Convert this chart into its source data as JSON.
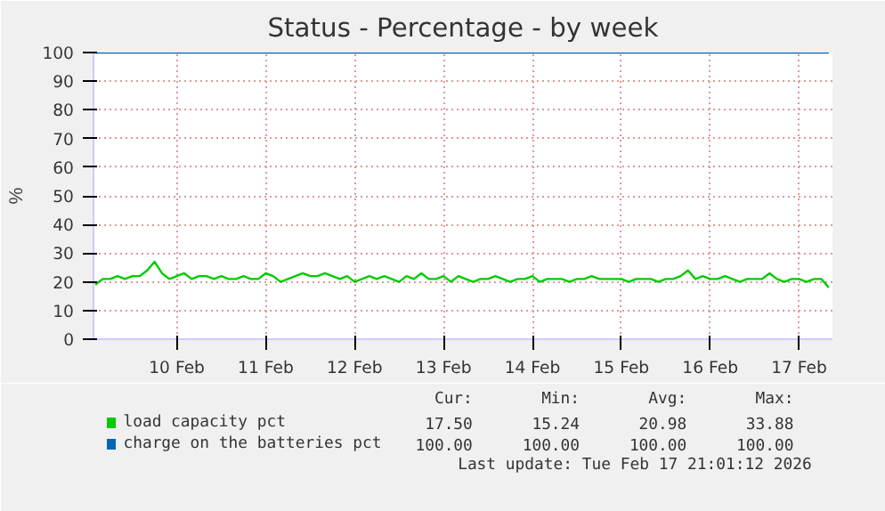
{
  "chart_data": {
    "type": "line",
    "title": "Status - Percentage - by week",
    "ylabel": "%",
    "x": [
      "2026-02-09T14:00",
      "2026-02-09T16:00",
      "2026-02-09T18:00",
      "2026-02-09T20:00",
      "2026-02-09T22:00",
      "2026-02-10T00:00",
      "2026-02-10T02:00",
      "2026-02-10T04:00",
      "2026-02-10T06:00",
      "2026-02-10T08:00",
      "2026-02-10T10:00",
      "2026-02-10T12:00",
      "2026-02-10T14:00",
      "2026-02-10T16:00",
      "2026-02-10T18:00",
      "2026-02-10T20:00",
      "2026-02-10T22:00",
      "2026-02-11T00:00",
      "2026-02-11T02:00",
      "2026-02-11T04:00",
      "2026-02-11T06:00",
      "2026-02-11T08:00",
      "2026-02-11T10:00",
      "2026-02-11T12:00",
      "2026-02-11T14:00",
      "2026-02-11T16:00",
      "2026-02-11T18:00",
      "2026-02-11T20:00",
      "2026-02-11T22:00",
      "2026-02-12T00:00",
      "2026-02-12T02:00",
      "2026-02-12T04:00",
      "2026-02-12T06:00",
      "2026-02-12T08:00",
      "2026-02-12T10:00",
      "2026-02-12T12:00",
      "2026-02-12T14:00",
      "2026-02-12T16:00",
      "2026-02-12T18:00",
      "2026-02-12T20:00",
      "2026-02-12T22:00",
      "2026-02-13T00:00",
      "2026-02-13T02:00",
      "2026-02-13T04:00",
      "2026-02-13T06:00",
      "2026-02-13T08:00",
      "2026-02-13T10:00",
      "2026-02-13T12:00",
      "2026-02-13T14:00",
      "2026-02-13T16:00",
      "2026-02-13T18:00",
      "2026-02-13T20:00",
      "2026-02-13T22:00",
      "2026-02-14T00:00",
      "2026-02-14T02:00",
      "2026-02-14T04:00",
      "2026-02-14T06:00",
      "2026-02-14T08:00",
      "2026-02-14T10:00",
      "2026-02-14T12:00",
      "2026-02-14T14:00",
      "2026-02-14T16:00",
      "2026-02-14T18:00",
      "2026-02-14T20:00",
      "2026-02-14T22:00",
      "2026-02-15T00:00",
      "2026-02-15T02:00",
      "2026-02-15T04:00",
      "2026-02-15T06:00",
      "2026-02-15T08:00",
      "2026-02-15T10:00",
      "2026-02-15T12:00",
      "2026-02-15T14:00",
      "2026-02-15T16:00",
      "2026-02-15T18:00",
      "2026-02-15T20:00",
      "2026-02-15T22:00",
      "2026-02-16T00:00",
      "2026-02-16T02:00",
      "2026-02-16T04:00",
      "2026-02-16T06:00",
      "2026-02-16T08:00",
      "2026-02-16T10:00",
      "2026-02-16T12:00",
      "2026-02-16T14:00",
      "2026-02-16T16:00",
      "2026-02-16T18:00",
      "2026-02-16T20:00",
      "2026-02-16T22:00",
      "2026-02-17T00:00",
      "2026-02-17T02:00",
      "2026-02-17T04:00",
      "2026-02-17T06:00",
      "2026-02-17T08:00",
      "2026-02-17T10:00",
      "2026-02-17T12:00",
      "2026-02-17T14:00",
      "2026-02-17T16:00",
      "2026-02-17T18:00",
      "2026-02-17T20:00"
    ],
    "series": [
      {
        "name": "load capacity pct",
        "color": "#00cc00",
        "values": [
          19,
          21,
          21,
          22,
          21,
          22,
          22,
          24,
          27,
          23,
          21,
          22,
          23,
          21,
          22,
          22,
          21,
          22,
          21,
          21,
          22,
          21,
          21,
          23,
          22,
          20,
          21,
          22,
          23,
          22,
          22,
          23,
          22,
          21,
          22,
          20,
          21,
          22,
          21,
          22,
          21,
          20,
          22,
          21,
          23,
          21,
          21,
          22,
          20,
          22,
          21,
          20,
          21,
          21,
          22,
          21,
          20,
          21,
          21,
          22,
          20,
          21,
          21,
          21,
          20,
          21,
          21,
          22,
          21,
          21,
          21,
          21,
          20,
          21,
          21,
          21,
          20,
          21,
          21,
          22,
          24,
          21,
          22,
          21,
          21,
          22,
          21,
          20,
          21,
          21,
          21,
          23,
          21,
          20,
          21,
          21,
          20,
          21,
          21,
          18
        ]
      },
      {
        "name": "charge on the batteries pct",
        "color": "#0066b3",
        "x": [
          "2026-02-09T14:00",
          "2026-02-17T20:00"
        ],
        "values": [
          100,
          100
        ]
      }
    ],
    "xlim": [
      "2026-02-09T13:30",
      "2026-02-17T21:00"
    ],
    "xticks": [
      {
        "value": "2026-02-10T12:00",
        "label": "10 Feb"
      },
      {
        "value": "2026-02-11T12:00",
        "label": "11 Feb"
      },
      {
        "value": "2026-02-12T12:00",
        "label": "12 Feb"
      },
      {
        "value": "2026-02-13T12:00",
        "label": "13 Feb"
      },
      {
        "value": "2026-02-14T12:00",
        "label": "14 Feb"
      },
      {
        "value": "2026-02-15T12:00",
        "label": "15 Feb"
      },
      {
        "value": "2026-02-16T12:00",
        "label": "16 Feb"
      },
      {
        "value": "2026-02-17T12:00",
        "label": "17 Feb"
      }
    ],
    "ylim": [
      0,
      100
    ],
    "yticks": [
      0,
      10,
      20,
      30,
      40,
      50,
      60,
      70,
      80,
      90,
      100
    ],
    "grid": true,
    "legend": "bottom",
    "marker": "none",
    "line_style": "solid",
    "annotations": [
      "Cur:",
      "Min:",
      "Avg:",
      "Max:",
      "17.50",
      "15.24",
      "20.98",
      "33.88",
      "100.00",
      "100.00",
      "100.00",
      "100.00",
      "Last update: Tue Feb 17 21:01:12 2026"
    ]
  }
}
